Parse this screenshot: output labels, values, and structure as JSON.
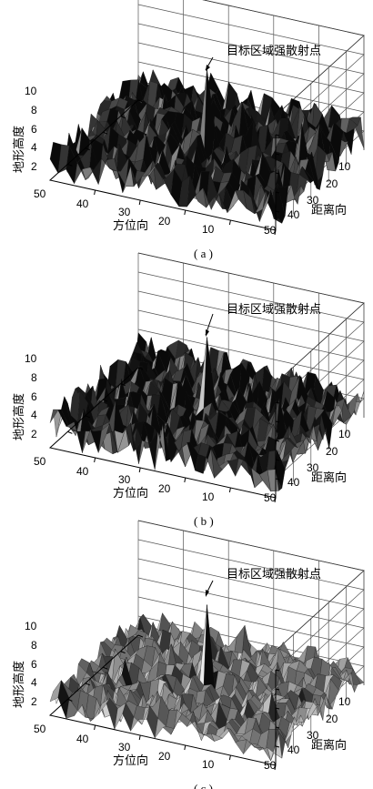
{
  "figure": {
    "panels": [
      {
        "caption": "( a )",
        "annotation": "目标区域强散射点",
        "z_label": "地形高度",
        "x_label": "方位向",
        "y_label": "距离向",
        "z_ticks": [
          "2",
          "4",
          "6",
          "8",
          "10"
        ],
        "x_ticks": [
          "50",
          "40",
          "30",
          "20",
          "10"
        ],
        "y_ticks": [
          "10",
          "20",
          "30",
          "40",
          "50"
        ],
        "fill_color": "#3c3c3c"
      },
      {
        "caption": "( b )",
        "annotation": "目标区域强散射点",
        "z_label": "地形高度",
        "x_label": "方位向",
        "y_label": "距离向",
        "z_ticks": [
          "2",
          "4",
          "6",
          "8",
          "10"
        ],
        "x_ticks": [
          "50",
          "40",
          "30",
          "20",
          "10"
        ],
        "y_ticks": [
          "10",
          "20",
          "30",
          "40",
          "50"
        ],
        "fill_color": "#3c3c3c"
      },
      {
        "caption": "( c )",
        "annotation": "目标区域强散射点",
        "z_label": "地形高度",
        "x_label": "方位向",
        "y_label": "距离向",
        "z_ticks": [
          "2",
          "4",
          "6",
          "8",
          "10"
        ],
        "x_ticks": [
          "50",
          "40",
          "30",
          "20",
          "10"
        ],
        "y_ticks": [
          "10",
          "20",
          "30",
          "40",
          "50"
        ],
        "fill_color": "#8a8a8a"
      }
    ]
  },
  "chart_data": [
    {
      "type": "surface",
      "panel": "a",
      "xlabel": "方位向",
      "ylabel": "距离向",
      "zlabel": "地形高度",
      "xlim": [
        0,
        50
      ],
      "ylim": [
        0,
        50
      ],
      "zlim": [
        0,
        10
      ],
      "surface_shading": "dark grey",
      "annotation": {
        "text": "目标区域强散射点",
        "x": 25,
        "y": 25,
        "z": 10
      },
      "background_height_range": [
        0,
        4
      ]
    },
    {
      "type": "surface",
      "panel": "b",
      "xlabel": "方位向",
      "ylabel": "距离向",
      "zlabel": "地形高度",
      "xlim": [
        0,
        50
      ],
      "ylim": [
        0,
        50
      ],
      "zlim": [
        0,
        10
      ],
      "surface_shading": "dark grey",
      "annotation": {
        "text": "目标区域强散射点",
        "x": 25,
        "y": 25,
        "z": 10
      },
      "background_height_range": [
        0,
        4
      ]
    },
    {
      "type": "surface",
      "panel": "c",
      "xlabel": "方位向",
      "ylabel": "距离向",
      "zlabel": "地形高度",
      "xlim": [
        0,
        50
      ],
      "ylim": [
        0,
        50
      ],
      "zlim": [
        0,
        10
      ],
      "surface_shading": "light grey",
      "annotation": {
        "text": "目标区域强散射点",
        "x": 25,
        "y": 25,
        "z": 10
      },
      "background_height_range": [
        0,
        3
      ]
    }
  ]
}
